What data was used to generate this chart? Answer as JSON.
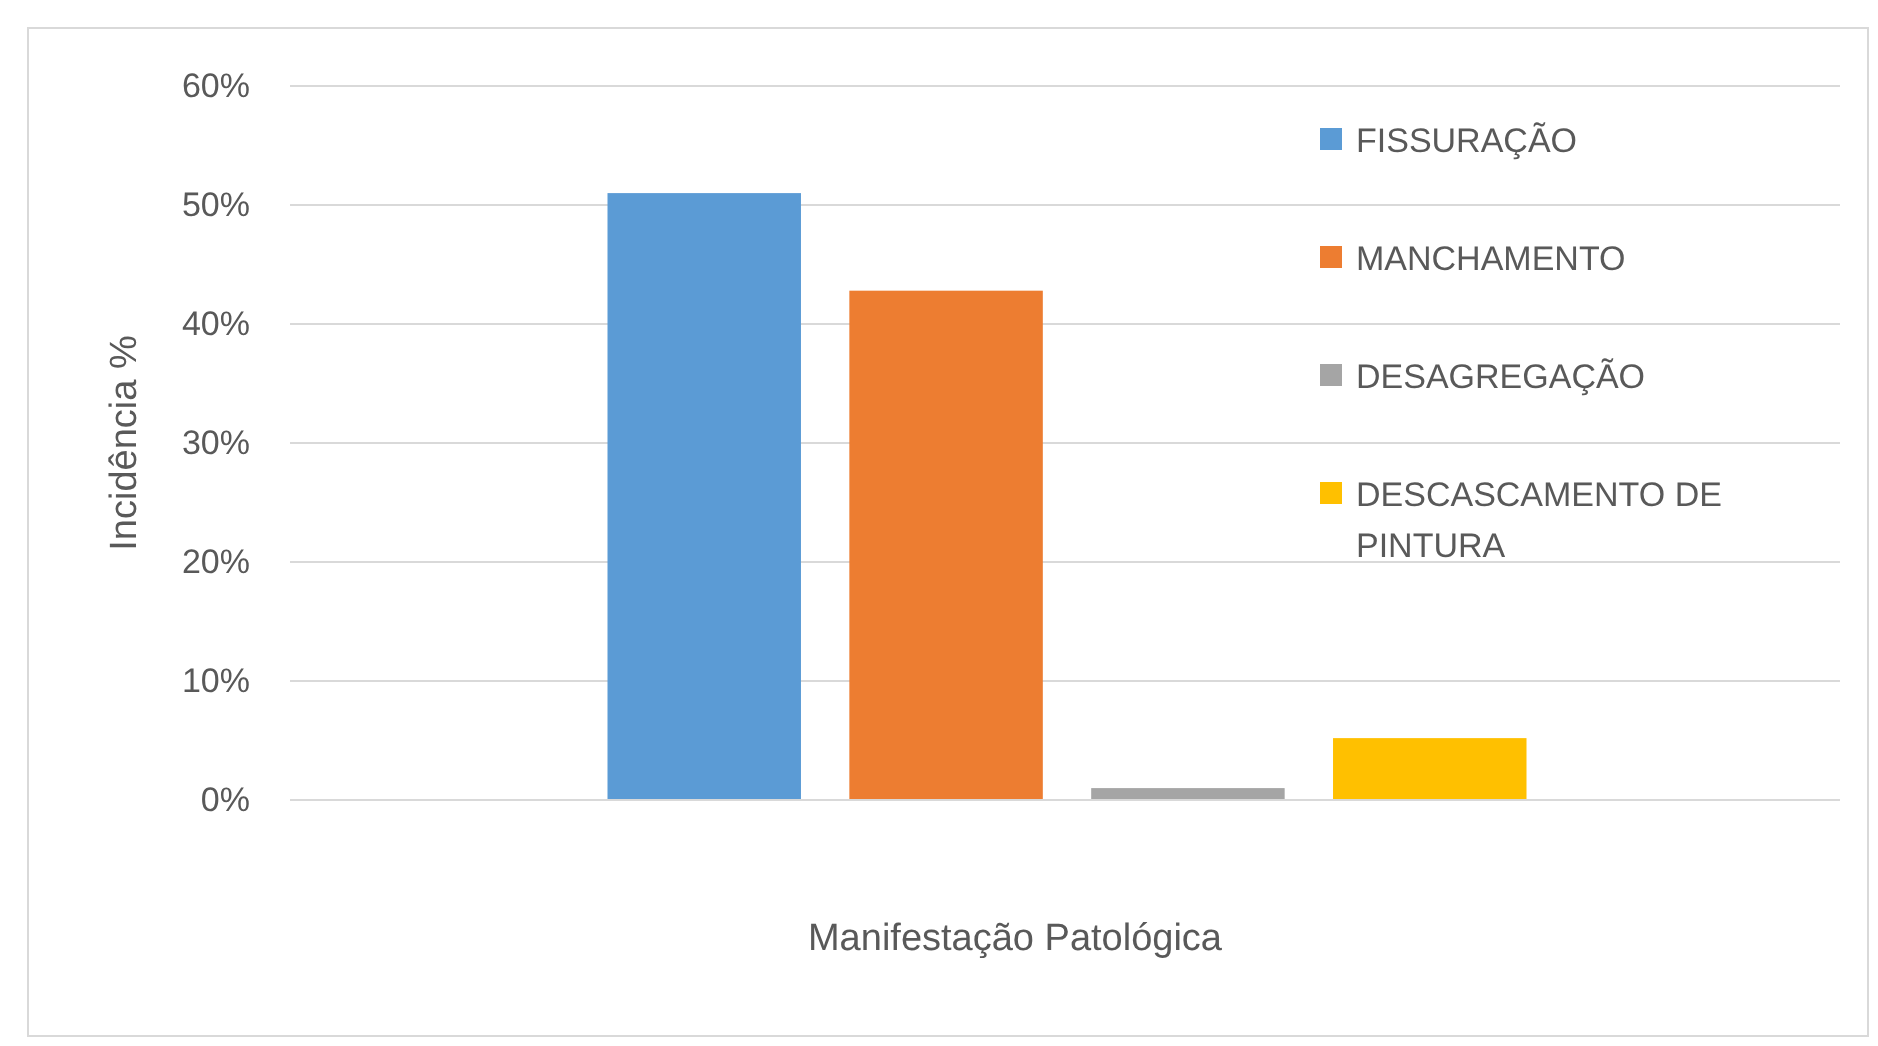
{
  "chart_data": {
    "type": "bar",
    "xlabel": "Manifestação Patológica",
    "ylabel": "Incidência %",
    "categories": [
      null
    ],
    "series": [
      {
        "name": "FISSURAÇÃO",
        "color": "#5b9bd5",
        "values": [
          51
        ]
      },
      {
        "name": "MANCHAMENTO",
        "color": "#ed7d31",
        "values": [
          42.8
        ]
      },
      {
        "name": "DESAGREGAÇÃO",
        "color": "#a5a5a5",
        "values": [
          1
        ]
      },
      {
        "name": "DESCASCAMENTO DE PINTURA",
        "color": "#ffc000",
        "values": [
          5.2
        ]
      }
    ],
    "ylim": [
      0,
      60
    ],
    "yticks": [
      {
        "value": 0,
        "label": "0%"
      },
      {
        "value": 10,
        "label": "10%"
      },
      {
        "value": 20,
        "label": "20%"
      },
      {
        "value": 30,
        "label": "30%"
      },
      {
        "value": 40,
        "label": "40%"
      },
      {
        "value": 50,
        "label": "50%"
      },
      {
        "value": 60,
        "label": "60%"
      }
    ],
    "grid": "y",
    "legend": "top right"
  }
}
